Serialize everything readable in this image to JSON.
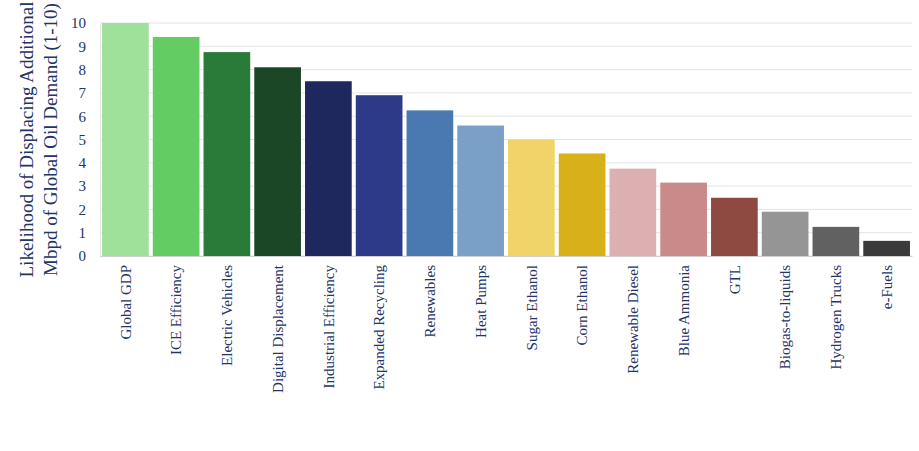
{
  "chart_data": {
    "type": "bar",
    "y_label": [
      "Likelihood of Displacing Additional",
      "Mbpd of Global Oil Demand (1-10)"
    ],
    "categories": [
      "Global GDP",
      "ICE Efficiency",
      "Electric Vehicles",
      "Digital Displacement",
      "Industrial Efficiency",
      "Expanded Recycling",
      "Renewables",
      "Heat Pumps",
      "Sugar Ethanol",
      "Corn Ethanol",
      "Renewable Diesel",
      "Blue Ammonia",
      "GTL",
      "Biogas-to-liquids",
      "Hydrogen Trucks",
      "e-Fuels"
    ],
    "values": [
      10,
      9.4,
      8.75,
      8.1,
      7.5,
      6.9,
      6.25,
      5.6,
      5.0,
      4.4,
      3.75,
      3.15,
      2.5,
      1.9,
      1.25,
      0.65
    ],
    "colors": [
      "#9fe09a",
      "#63cc63",
      "#2a7a3a",
      "#1b4726",
      "#1f285c",
      "#2d3a88",
      "#4a78b0",
      "#7ba0c8",
      "#f0d468",
      "#d8b11a",
      "#dcb0b0",
      "#c98a8a",
      "#8e4a40",
      "#959595",
      "#616161",
      "#3a3a3a"
    ],
    "ylim": [
      0,
      10
    ],
    "yticks": [
      0,
      1,
      2,
      3,
      4,
      5,
      6,
      7,
      8,
      9,
      10
    ],
    "grid": true
  }
}
